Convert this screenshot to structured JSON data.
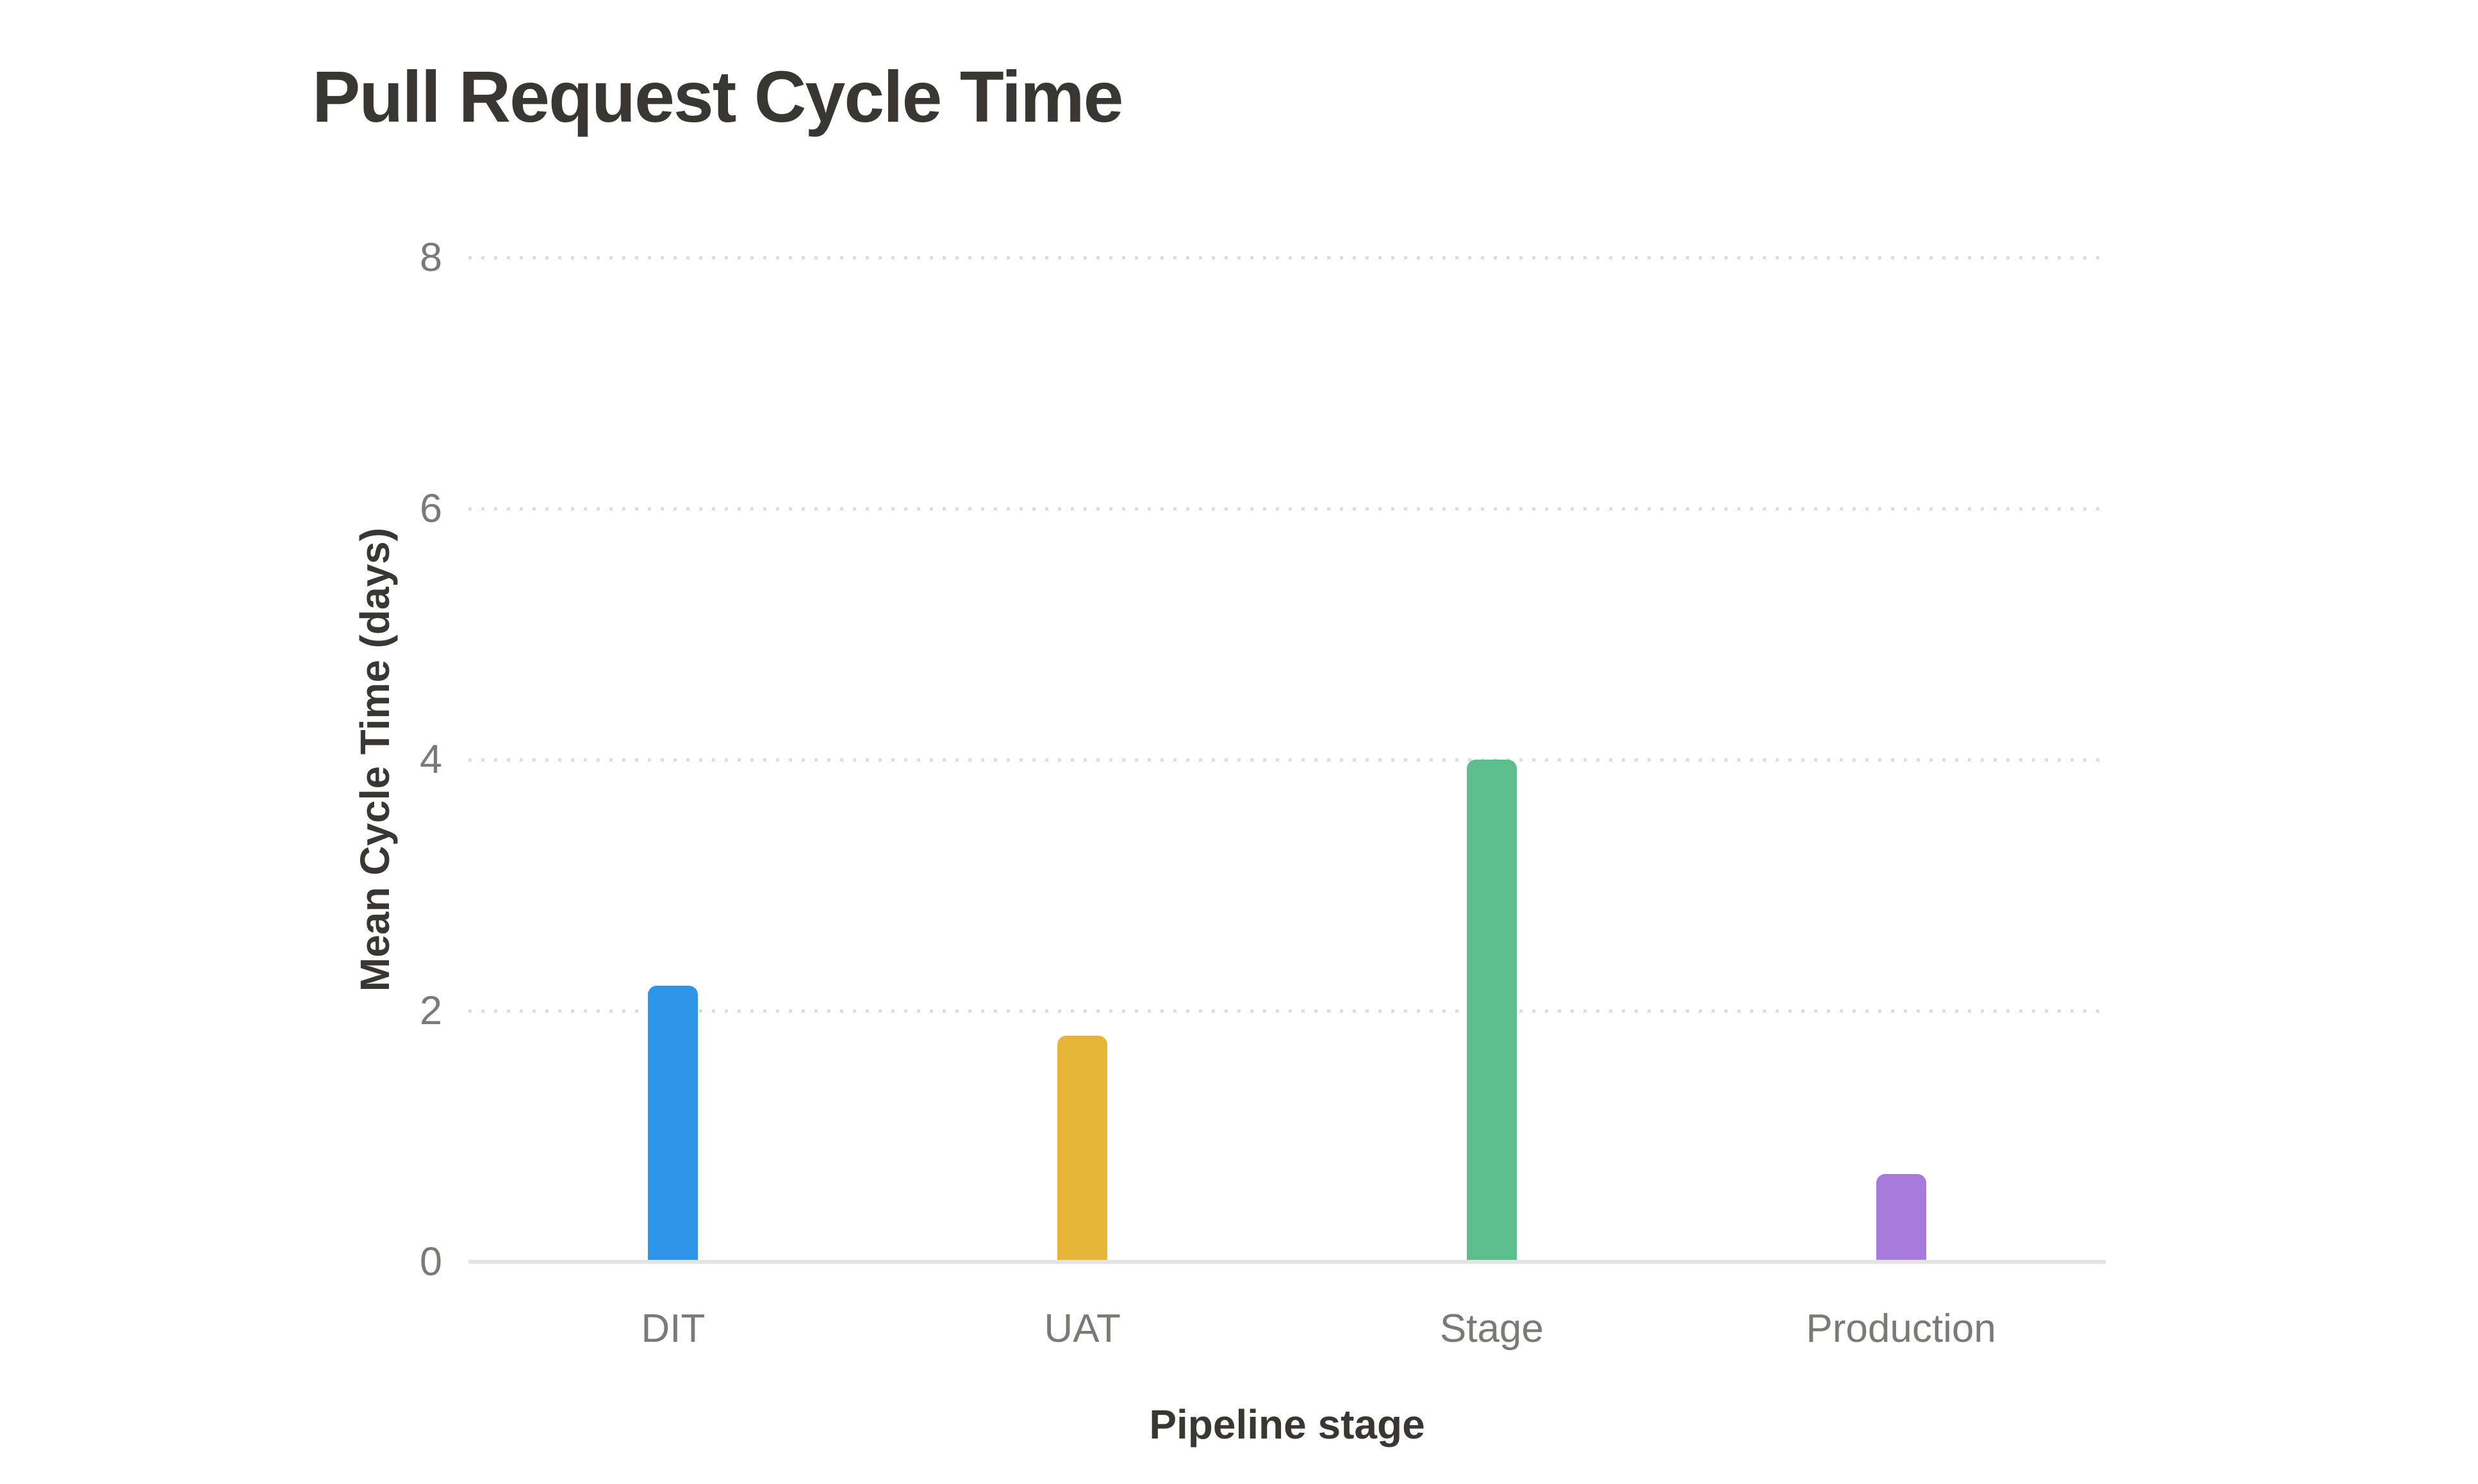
{
  "chart_data": {
    "type": "bar",
    "title": "Pull Request Cycle Time",
    "xlabel": "Pipeline stage",
    "ylabel": "Mean Cycle Time (days)",
    "categories": [
      "DIT",
      "UAT",
      "Stage",
      "Production"
    ],
    "values": [
      2.2,
      1.8,
      4.0,
      0.7
    ],
    "bar_colors": [
      "#2E95E8",
      "#E7B535",
      "#5CBD8D",
      "#A77ADB"
    ],
    "ylim": [
      0,
      8
    ],
    "yticks": [
      0,
      2,
      4,
      6,
      8
    ],
    "grid": "dotted horizontal gridlines at y ticks, no vertical gridlines, no legend",
    "colors": {
      "title_text": "#3A3733",
      "tick_text": "#7B7A77",
      "gridline": "#DCDCDA",
      "axis_line": "#E3E3E1",
      "background": "#FFFFFF"
    }
  }
}
